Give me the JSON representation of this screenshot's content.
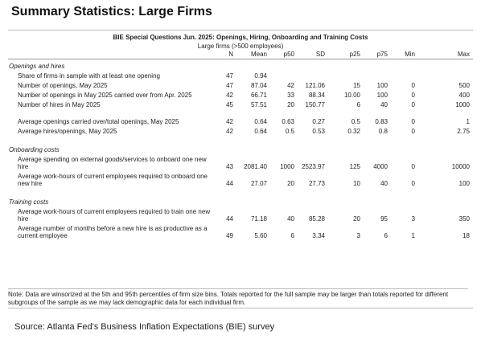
{
  "header": {
    "title": "Summary Statistics: Large Firms",
    "subtitle": "BIE Special Questions Jun. 2025: Openings, Hiring, Onboarding and Training Costs",
    "group": "Large firms (>500 employees)"
  },
  "table": {
    "columns": [
      "N",
      "Mean",
      "p50",
      "SD",
      "p25",
      "p75",
      "Min",
      "Max"
    ],
    "sections": [
      {
        "heading": "Openings and hires",
        "rows": [
          [
            "Share of firms in sample with at least one opening",
            "47",
            "0.94",
            null,
            null,
            null,
            null,
            null,
            null
          ],
          [
            "Number of openings, May 2025",
            "47",
            "87.04",
            "42",
            "121.06",
            "15",
            "100",
            "0",
            "500"
          ],
          [
            "Number of openings in May 2025 carried over from Apr. 2025",
            "42",
            "66.71",
            "33",
            "88.34",
            "10.00",
            "100",
            "0",
            "400"
          ],
          [
            "Number of hires in May 2025",
            "45",
            "57.51",
            "20",
            "150.77",
            "6",
            "40",
            "0",
            "1000"
          ],
          [
            "Average openings carried over/total openings, May 2025",
            "42",
            "0.64",
            "0.63",
            "0.27",
            "0.5",
            "0.83",
            "0",
            "1"
          ],
          [
            "Average hires/openings, May 2025",
            "42",
            "0.64",
            "0.5",
            "0.53",
            "0.32",
            "0.8",
            "0",
            "2.75"
          ]
        ]
      },
      {
        "heading": "Onboarding costs",
        "rows": [
          [
            "Average spending on external goods/services to onboard one new hire",
            "43",
            "2081.40",
            "1000",
            "2523.97",
            "125",
            "4000",
            "0",
            "10000"
          ],
          [
            "Average work-hours of current employees required to onboard one new hire",
            "44",
            "27.07",
            "20",
            "27.73",
            "10",
            "40",
            "0",
            "100"
          ]
        ]
      },
      {
        "heading": "Training costs",
        "rows": [
          [
            "Average work-hours of current employees required to train one new hire",
            "44",
            "71.18",
            "40",
            "85.28",
            "20",
            "95",
            "3",
            "350"
          ],
          [
            "Average number of months before a new hire is as productive as a current employee",
            "49",
            "5.60",
            "6",
            "3.34",
            "3",
            "6",
            "1",
            "18"
          ]
        ]
      }
    ]
  },
  "note": "Note: Data are winsorized at the 5th and 95th percentiles of firm size bins. Totals reported for the full sample may be larger than totals reported for different subgroups of the sample as we may lack demographic data for each individual firm.",
  "source": "Source: Atlanta Fed's Business Inflation Expectations (BIE) survey"
}
